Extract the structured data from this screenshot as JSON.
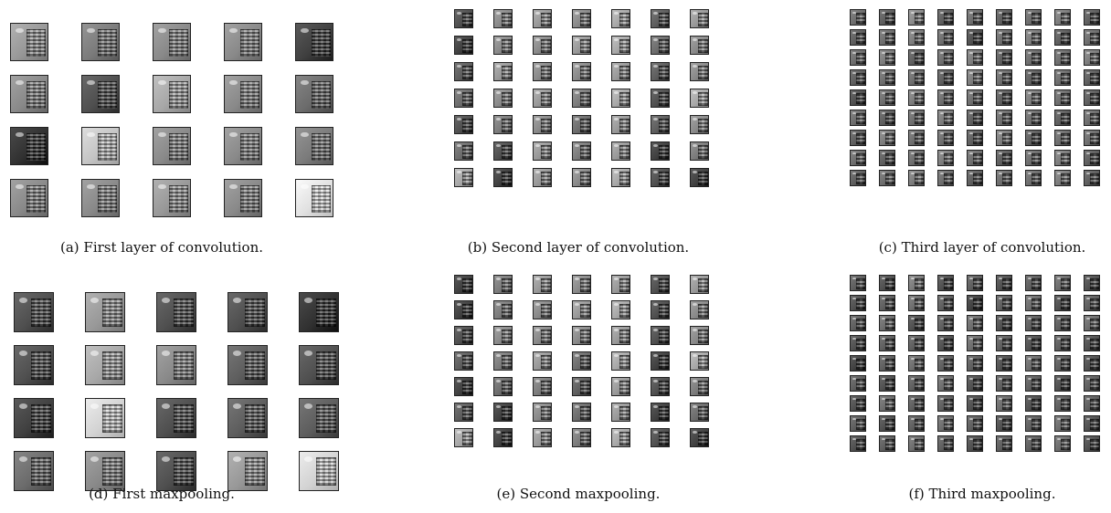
{
  "panels": [
    {
      "id": "a",
      "caption": "(a) First layer of convolution.",
      "rows": 4,
      "cols": 5,
      "tones": [
        9,
        7,
        8,
        8,
        3,
        8,
        4,
        10,
        8,
        6,
        2,
        12,
        8,
        8,
        7,
        8,
        8,
        9,
        8,
        14
      ]
    },
    {
      "id": "b",
      "caption": "(b) Second layer of convolution.",
      "rows": 7,
      "cols": 7,
      "tones": [
        4,
        8,
        9,
        8,
        10,
        5,
        9,
        3,
        8,
        8,
        9,
        10,
        6,
        8,
        5,
        9,
        8,
        8,
        9,
        5,
        8,
        6,
        8,
        9,
        7,
        10,
        4,
        10,
        4,
        7,
        8,
        6,
        9,
        5,
        8,
        6,
        4,
        9,
        7,
        9,
        3,
        7,
        10,
        3,
        9,
        8,
        10,
        4,
        3
      ]
    },
    {
      "id": "c",
      "caption": "(c) Third layer of convolution.",
      "rows": 9,
      "cols": 9,
      "tones": [
        6,
        5,
        8,
        5,
        6,
        5,
        6,
        7,
        5,
        5,
        6,
        7,
        6,
        4,
        6,
        7,
        5,
        6,
        6,
        7,
        5,
        6,
        7,
        5,
        6,
        6,
        7,
        5,
        6,
        6,
        5,
        7,
        6,
        5,
        6,
        5,
        4,
        6,
        7,
        6,
        6,
        5,
        7,
        6,
        5,
        6,
        5,
        6,
        7,
        5,
        6,
        6,
        5,
        6,
        5,
        7,
        6,
        6,
        5,
        7,
        5,
        6,
        6,
        6,
        5,
        6,
        7,
        6,
        5,
        6,
        7,
        5,
        5,
        6,
        7,
        6,
        5,
        6,
        6,
        7,
        5
      ]
    },
    {
      "id": "d",
      "caption": "(d) First maxpooling.",
      "rows": 4,
      "cols": 5,
      "tones": [
        4,
        9,
        4,
        4,
        2,
        4,
        10,
        8,
        5,
        4,
        3,
        13,
        4,
        5,
        5,
        6,
        8,
        4,
        9,
        13
      ]
    },
    {
      "id": "e",
      "caption": "(e) Second maxpooling.",
      "rows": 7,
      "cols": 7,
      "tones": [
        3,
        7,
        9,
        8,
        9,
        4,
        9,
        3,
        7,
        8,
        9,
        10,
        4,
        8,
        4,
        8,
        8,
        8,
        9,
        4,
        8,
        5,
        7,
        9,
        6,
        10,
        3,
        10,
        3,
        6,
        7,
        5,
        9,
        4,
        7,
        5,
        3,
        8,
        6,
        9,
        3,
        6,
        10,
        3,
        9,
        7,
        10,
        4,
        3
      ]
    },
    {
      "id": "f",
      "caption": "(f) Third maxpooling.",
      "rows": 9,
      "cols": 9,
      "tones": [
        5,
        4,
        7,
        4,
        5,
        4,
        5,
        6,
        4,
        4,
        5,
        6,
        5,
        3,
        5,
        6,
        4,
        5,
        5,
        6,
        4,
        5,
        6,
        4,
        5,
        5,
        6,
        4,
        5,
        5,
        4,
        6,
        5,
        4,
        5,
        4,
        3,
        5,
        6,
        5,
        5,
        4,
        6,
        5,
        4,
        5,
        4,
        5,
        6,
        4,
        5,
        5,
        4,
        5,
        4,
        6,
        5,
        5,
        4,
        6,
        4,
        5,
        5,
        5,
        4,
        5,
        6,
        5,
        4,
        5,
        6,
        4,
        4,
        5,
        6,
        5,
        4,
        5,
        5,
        6,
        4
      ]
    }
  ]
}
